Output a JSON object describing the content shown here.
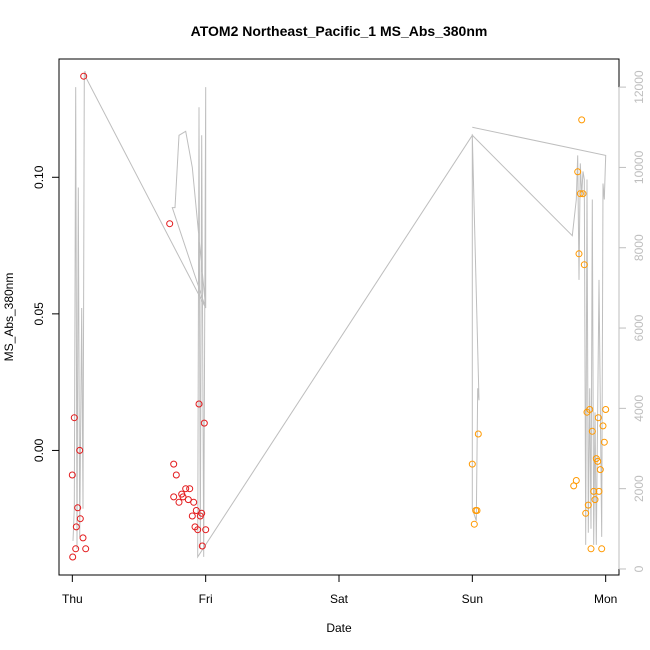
{
  "chart_data": {
    "type": "scatter",
    "title": "ATOM2 Northeast_Pacific_1 MS_Abs_380nm",
    "xlabel": "Date",
    "ylabel": "MS_Abs_380nm",
    "x_unit": "days since Thursday 00:00",
    "xlim": [
      -0.1,
      4.1
    ],
    "ylim": [
      -0.0456,
      0.1433
    ],
    "x_ticks": [
      {
        "value": 0,
        "label": "Thu"
      },
      {
        "value": 1,
        "label": "Fri"
      },
      {
        "value": 2,
        "label": "Sat"
      },
      {
        "value": 3,
        "label": "Sun"
      },
      {
        "value": 4,
        "label": "Mon"
      }
    ],
    "y_ticks": [
      {
        "value": 0.0,
        "label": "0.00"
      },
      {
        "value": 0.05,
        "label": "0.05"
      },
      {
        "value": 0.1,
        "label": "0.10"
      }
    ],
    "y2lim": [
      -150,
      12700
    ],
    "y2_ticks": [
      {
        "value": 0,
        "label": "0"
      },
      {
        "value": 2000,
        "label": "2000"
      },
      {
        "value": 4000,
        "label": "4000"
      },
      {
        "value": 6000,
        "label": "6000"
      },
      {
        "value": 8000,
        "label": "8000"
      },
      {
        "value": 10000,
        "label": "10000"
      },
      {
        "value": 12000,
        "label": "12000"
      }
    ],
    "grid": false,
    "series": [
      {
        "color": "#e31a1c",
        "points": [
          {
            "x": 0.0,
            "y": -0.009
          },
          {
            "x": 0.003,
            "y": -0.039
          },
          {
            "x": 0.015,
            "y": 0.012
          },
          {
            "x": 0.025,
            "y": -0.036
          },
          {
            "x": 0.03,
            "y": -0.028
          },
          {
            "x": 0.04,
            "y": -0.021
          },
          {
            "x": 0.055,
            "y": 0.0
          },
          {
            "x": 0.06,
            "y": -0.025
          },
          {
            "x": 0.08,
            "y": -0.032
          },
          {
            "x": 0.085,
            "y": 0.137
          },
          {
            "x": 0.1,
            "y": -0.036
          },
          {
            "x": 0.73,
            "y": 0.083
          },
          {
            "x": 0.76,
            "y": -0.017
          },
          {
            "x": 0.76,
            "y": -0.005
          },
          {
            "x": 0.78,
            "y": -0.009
          },
          {
            "x": 0.8,
            "y": -0.019
          },
          {
            "x": 0.82,
            "y": -0.016
          },
          {
            "x": 0.83,
            "y": -0.017
          },
          {
            "x": 0.85,
            "y": -0.014
          },
          {
            "x": 0.87,
            "y": -0.018
          },
          {
            "x": 0.88,
            "y": -0.014
          },
          {
            "x": 0.9,
            "y": -0.024
          },
          {
            "x": 0.91,
            "y": -0.019
          },
          {
            "x": 0.92,
            "y": -0.028
          },
          {
            "x": 0.93,
            "y": -0.022
          },
          {
            "x": 0.94,
            "y": -0.029
          },
          {
            "x": 0.95,
            "y": 0.017
          },
          {
            "x": 0.96,
            "y": -0.024
          },
          {
            "x": 0.97,
            "y": -0.023
          },
          {
            "x": 0.975,
            "y": -0.035
          },
          {
            "x": 0.99,
            "y": 0.01
          },
          {
            "x": 1.0,
            "y": -0.029
          }
        ]
      },
      {
        "color": "#ff9900",
        "points": [
          {
            "x": 3.0,
            "y": -0.005
          },
          {
            "x": 3.015,
            "y": -0.027
          },
          {
            "x": 3.025,
            "y": -0.022
          },
          {
            "x": 3.035,
            "y": -0.022
          },
          {
            "x": 3.045,
            "y": 0.006
          },
          {
            "x": 3.76,
            "y": -0.013
          },
          {
            "x": 3.78,
            "y": -0.011
          },
          {
            "x": 3.79,
            "y": 0.102
          },
          {
            "x": 3.8,
            "y": 0.072
          },
          {
            "x": 3.81,
            "y": 0.094
          },
          {
            "x": 3.82,
            "y": 0.121
          },
          {
            "x": 3.83,
            "y": 0.094
          },
          {
            "x": 3.84,
            "y": 0.068
          },
          {
            "x": 3.85,
            "y": -0.023
          },
          {
            "x": 3.86,
            "y": 0.014
          },
          {
            "x": 3.87,
            "y": -0.02
          },
          {
            "x": 3.88,
            "y": 0.015
          },
          {
            "x": 3.89,
            "y": -0.036
          },
          {
            "x": 3.9,
            "y": 0.007
          },
          {
            "x": 3.91,
            "y": -0.015
          },
          {
            "x": 3.92,
            "y": -0.018
          },
          {
            "x": 3.93,
            "y": -0.003
          },
          {
            "x": 3.94,
            "y": -0.004
          },
          {
            "x": 3.945,
            "y": 0.012
          },
          {
            "x": 3.95,
            "y": -0.015
          },
          {
            "x": 3.96,
            "y": -0.007
          },
          {
            "x": 3.97,
            "y": -0.036
          },
          {
            "x": 3.98,
            "y": 0.009
          },
          {
            "x": 3.99,
            "y": 0.003
          },
          {
            "x": 4.0,
            "y": 0.015
          }
        ]
      }
    ],
    "secondary_line": {
      "color": "#bebebe",
      "points": [
        {
          "x": 0.005,
          "y2": 700
        },
        {
          "x": 0.015,
          "y2": 1500
        },
        {
          "x": 0.025,
          "y2": 12000
        },
        {
          "x": 0.035,
          "y2": 500
        },
        {
          "x": 0.045,
          "y2": 9500
        },
        {
          "x": 0.055,
          "y2": 800
        },
        {
          "x": 0.07,
          "y2": 6500
        },
        {
          "x": 0.08,
          "y2": 1500
        },
        {
          "x": 0.09,
          "y2": 12300
        },
        {
          "x": 0.095,
          "y2": 12400
        },
        {
          "x": 0.1,
          "y2": 12250
        },
        {
          "x": 1.0,
          "y2": 6500
        },
        {
          "x": 0.9,
          "y2": 10000
        },
        {
          "x": 0.85,
          "y2": 10900
        },
        {
          "x": 0.8,
          "y2": 10800
        },
        {
          "x": 0.77,
          "y2": 9000
        },
        {
          "x": 0.75,
          "y2": 9000
        },
        {
          "x": 1.0,
          "y2": 6500
        },
        {
          "x": 1.0,
          "y2": 12000
        },
        {
          "x": 0.985,
          "y2": 300
        },
        {
          "x": 0.97,
          "y2": 10800
        },
        {
          "x": 0.96,
          "y2": 500
        },
        {
          "x": 0.95,
          "y2": 11500
        },
        {
          "x": 0.94,
          "y2": 300
        },
        {
          "x": 3.0,
          "y2": 10800
        },
        {
          "x": 3.0,
          "y2": 1500
        },
        {
          "x": 3.03,
          "y2": 1200
        },
        {
          "x": 3.04,
          "y2": 4500
        },
        {
          "x": 3.05,
          "y2": 4200
        },
        {
          "x": 3.0,
          "y2": 10800
        },
        {
          "x": 3.75,
          "y2": 8300
        },
        {
          "x": 3.78,
          "y2": 9200
        },
        {
          "x": 3.79,
          "y2": 10300
        },
        {
          "x": 3.8,
          "y2": 7200
        },
        {
          "x": 3.81,
          "y2": 10100
        },
        {
          "x": 3.82,
          "y2": 9300
        },
        {
          "x": 3.83,
          "y2": 9900
        },
        {
          "x": 3.84,
          "y2": 9700
        },
        {
          "x": 3.85,
          "y2": 600
        },
        {
          "x": 3.86,
          "y2": 9700
        },
        {
          "x": 3.87,
          "y2": 900
        },
        {
          "x": 3.88,
          "y2": 4500
        },
        {
          "x": 3.89,
          "y2": 1000
        },
        {
          "x": 3.9,
          "y2": 9200
        },
        {
          "x": 3.91,
          "y2": 600
        },
        {
          "x": 3.92,
          "y2": 3900
        },
        {
          "x": 3.93,
          "y2": 600
        },
        {
          "x": 3.95,
          "y2": 7200
        },
        {
          "x": 3.97,
          "y2": 800
        },
        {
          "x": 3.98,
          "y2": 9600
        },
        {
          "x": 3.99,
          "y2": 9200
        },
        {
          "x": 4.0,
          "y2": 10300
        },
        {
          "x": 3.0,
          "y2": 11000
        }
      ]
    }
  }
}
